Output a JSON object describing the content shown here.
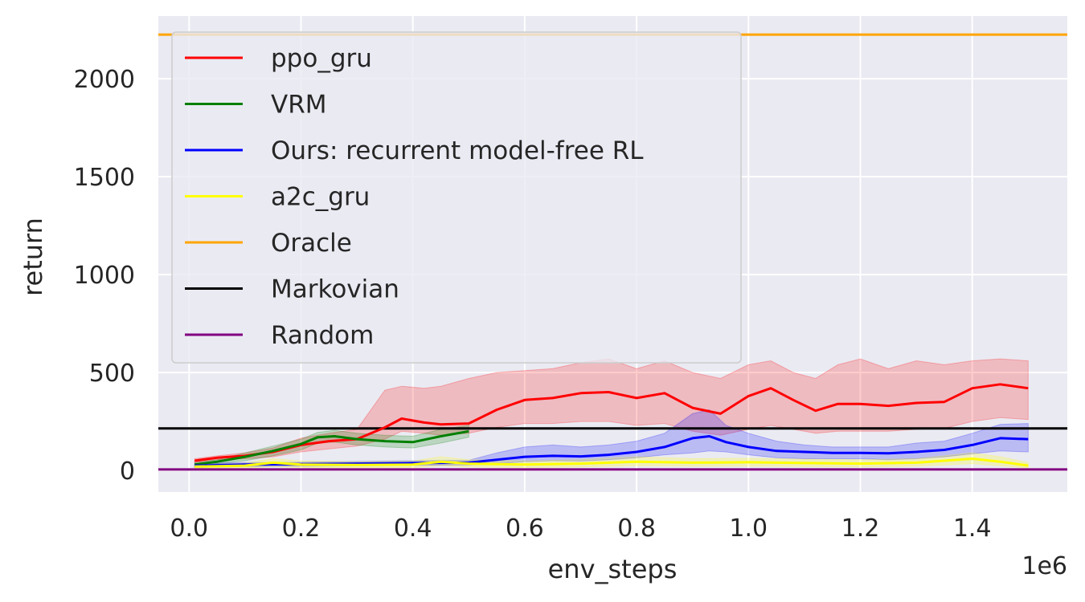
{
  "chart_data": {
    "type": "line",
    "xlabel": "env_steps",
    "ylabel": "return",
    "x_scale_label": "1e6",
    "xlim": [
      -0.055,
      1.57
    ],
    "ylim": [
      -110,
      2320
    ],
    "x_ticks": [
      0.0,
      0.2,
      0.4,
      0.6,
      0.8,
      1.0,
      1.2,
      1.4
    ],
    "x_tick_labels": [
      "0.0",
      "0.2",
      "0.4",
      "0.6",
      "0.8",
      "1.0",
      "1.2",
      "1.4"
    ],
    "y_ticks": [
      0,
      500,
      1000,
      1500,
      2000
    ],
    "y_tick_labels": [
      "0",
      "500",
      "1000",
      "1500",
      "2000"
    ],
    "grid": true,
    "legend_position": "top-left",
    "series": [
      {
        "name": "ppo_gru",
        "color": "#ff0000",
        "x": [
          0.01,
          0.05,
          0.1,
          0.15,
          0.2,
          0.25,
          0.3,
          0.35,
          0.38,
          0.42,
          0.45,
          0.5,
          0.55,
          0.6,
          0.65,
          0.7,
          0.75,
          0.8,
          0.85,
          0.9,
          0.95,
          1.0,
          1.04,
          1.08,
          1.12,
          1.16,
          1.2,
          1.25,
          1.3,
          1.35,
          1.4,
          1.45,
          1.5
        ],
        "y": [
          50,
          65,
          75,
          95,
          130,
          150,
          160,
          220,
          265,
          245,
          235,
          240,
          310,
          360,
          370,
          395,
          400,
          370,
          395,
          320,
          290,
          380,
          420,
          360,
          305,
          340,
          340,
          330,
          345,
          350,
          420,
          440,
          420
        ],
        "lower": [
          40,
          55,
          60,
          70,
          95,
          110,
          125,
          160,
          200,
          190,
          180,
          190,
          220,
          240,
          240,
          250,
          250,
          230,
          240,
          200,
          180,
          210,
          230,
          210,
          190,
          200,
          200,
          200,
          210,
          215,
          250,
          270,
          260
        ],
        "upper": [
          60,
          75,
          90,
          115,
          165,
          190,
          210,
          410,
          430,
          420,
          430,
          470,
          500,
          510,
          520,
          550,
          570,
          520,
          560,
          500,
          470,
          540,
          560,
          500,
          470,
          540,
          570,
          520,
          560,
          540,
          560,
          570,
          560
        ]
      },
      {
        "name": "VRM",
        "color": "#008000",
        "x": [
          0.01,
          0.05,
          0.1,
          0.15,
          0.2,
          0.23,
          0.26,
          0.3,
          0.35,
          0.4,
          0.45,
          0.5
        ],
        "y": [
          30,
          45,
          70,
          100,
          135,
          170,
          175,
          160,
          150,
          145,
          175,
          200
        ],
        "lower": [
          20,
          35,
          50,
          75,
          105,
          140,
          145,
          130,
          120,
          115,
          140,
          170
        ],
        "upper": [
          40,
          55,
          90,
          125,
          160,
          195,
          205,
          190,
          180,
          175,
          210,
          230
        ]
      },
      {
        "name": "Ours: recurrent model-free RL",
        "color": "#0000ff",
        "x": [
          0.01,
          0.1,
          0.2,
          0.3,
          0.4,
          0.5,
          0.55,
          0.6,
          0.65,
          0.7,
          0.75,
          0.8,
          0.85,
          0.9,
          0.93,
          0.96,
          1.0,
          1.05,
          1.1,
          1.15,
          1.2,
          1.25,
          1.3,
          1.35,
          1.4,
          1.45,
          1.5
        ],
        "y": [
          25,
          30,
          32,
          35,
          38,
          40,
          55,
          70,
          75,
          72,
          80,
          95,
          120,
          165,
          175,
          145,
          120,
          100,
          95,
          90,
          90,
          88,
          95,
          105,
          130,
          165,
          160
        ],
        "lower": [
          15,
          20,
          22,
          24,
          26,
          28,
          35,
          45,
          50,
          48,
          55,
          65,
          80,
          90,
          100,
          95,
          80,
          65,
          60,
          60,
          60,
          55,
          60,
          70,
          85,
          100,
          95
        ],
        "upper": [
          35,
          40,
          42,
          46,
          50,
          52,
          90,
          120,
          130,
          120,
          130,
          150,
          190,
          290,
          310,
          230,
          190,
          150,
          130,
          120,
          120,
          120,
          140,
          150,
          190,
          235,
          240
        ]
      },
      {
        "name": "a2c_gru",
        "color": "#ffff00",
        "x": [
          0.01,
          0.1,
          0.15,
          0.2,
          0.3,
          0.4,
          0.45,
          0.5,
          0.6,
          0.7,
          0.8,
          0.9,
          1.0,
          1.1,
          1.2,
          1.3,
          1.4,
          1.45,
          1.5
        ],
        "y": [
          20,
          25,
          40,
          30,
          28,
          30,
          45,
          35,
          30,
          35,
          45,
          40,
          42,
          38,
          35,
          40,
          60,
          45,
          25
        ],
        "lower": [
          10,
          12,
          20,
          15,
          14,
          15,
          25,
          18,
          15,
          18,
          25,
          22,
          22,
          20,
          18,
          22,
          35,
          25,
          12
        ],
        "upper": [
          30,
          38,
          60,
          48,
          45,
          48,
          70,
          55,
          48,
          55,
          70,
          60,
          62,
          58,
          55,
          60,
          90,
          70,
          40
        ]
      },
      {
        "name": "Oracle",
        "color": "#ffa500",
        "constant": 2225
      },
      {
        "name": "Markovian",
        "color": "#000000",
        "constant": 215
      },
      {
        "name": "Random",
        "color": "#800080",
        "constant": 5
      }
    ]
  }
}
